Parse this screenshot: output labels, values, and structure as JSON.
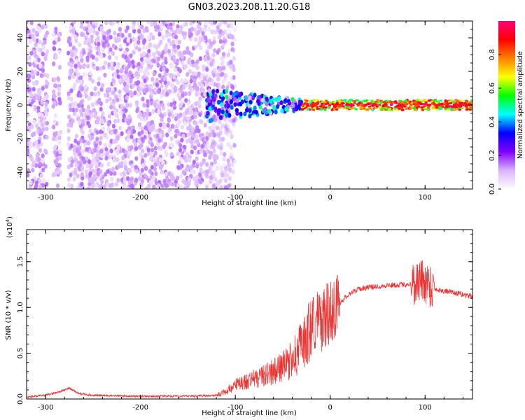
{
  "title": "GN03.2023.208.11.20.G18",
  "chart_data": [
    {
      "type": "heatmap",
      "xlabel": "Height of straight line (km)",
      "ylabel": "Frequency (Hz)",
      "xlim": [
        -320,
        150
      ],
      "ylim": [
        -50,
        50
      ],
      "xticks": [
        -300,
        -200,
        -100,
        0,
        100
      ],
      "yticks": [
        -40,
        -20,
        0,
        20,
        40
      ],
      "colorbar": {
        "label": "Normalized spectral amplitude",
        "range": [
          0,
          1
        ],
        "ticks": [
          0.0,
          0.2,
          0.4,
          0.6,
          0.8
        ],
        "colors": [
          "#ffffff",
          "#d9b3ff",
          "#8000ff",
          "#0000ff",
          "#00ffff",
          "#00ff00",
          "#ffff00",
          "#ff8000",
          "#ff0000",
          "#ff0080"
        ]
      },
      "regions": [
        {
          "x_range": [
            -320,
            -130
          ],
          "freq_range": [
            -50,
            50
          ],
          "amplitude": 0.1
        },
        {
          "x_range": [
            -130,
            -100
          ],
          "freq_range": [
            -50,
            50
          ],
          "amplitude": 0.1
        },
        {
          "x_range": [
            -130,
            -30
          ],
          "freq_range": [
            -10,
            10
          ],
          "amplitude": 0.3
        },
        {
          "x_range": [
            -30,
            150
          ],
          "freq_range": [
            -3,
            3
          ],
          "amplitude": 0.7
        }
      ]
    },
    {
      "type": "line",
      "xlabel": "Height of straight line (km)",
      "ylabel": "SNR (10 * v/v)",
      "yscale_label": "(x10",
      "yscale_exp": "4",
      "yscale_close": ")",
      "xlim": [
        -320,
        150
      ],
      "ylim": [
        0,
        1.85
      ],
      "xticks": [
        -300,
        -200,
        -100,
        0,
        100
      ],
      "yticks": [
        0.0,
        0.5,
        1.0,
        1.5
      ],
      "line_color": "#ee3333",
      "series": [
        {
          "x": [
            -320,
            -300,
            -285,
            -275,
            -265,
            -250,
            -200,
            -150,
            -120,
            -110,
            -100,
            -80,
            -60,
            -45,
            -35,
            -25,
            -20,
            -15,
            -10,
            0,
            10,
            20,
            30,
            40,
            60,
            80,
            90,
            95,
            100,
            105,
            110,
            120,
            130,
            140,
            150
          ],
          "y": [
            0.02,
            0.04,
            0.08,
            0.12,
            0.06,
            0.04,
            0.03,
            0.03,
            0.04,
            0.08,
            0.15,
            0.22,
            0.3,
            0.38,
            0.5,
            0.65,
            0.8,
            0.85,
            0.85,
            0.95,
            1.05,
            1.15,
            1.2,
            1.22,
            1.24,
            1.25,
            1.27,
            1.3,
            1.28,
            1.25,
            1.2,
            1.18,
            1.16,
            1.14,
            1.12
          ]
        }
      ]
    }
  ]
}
